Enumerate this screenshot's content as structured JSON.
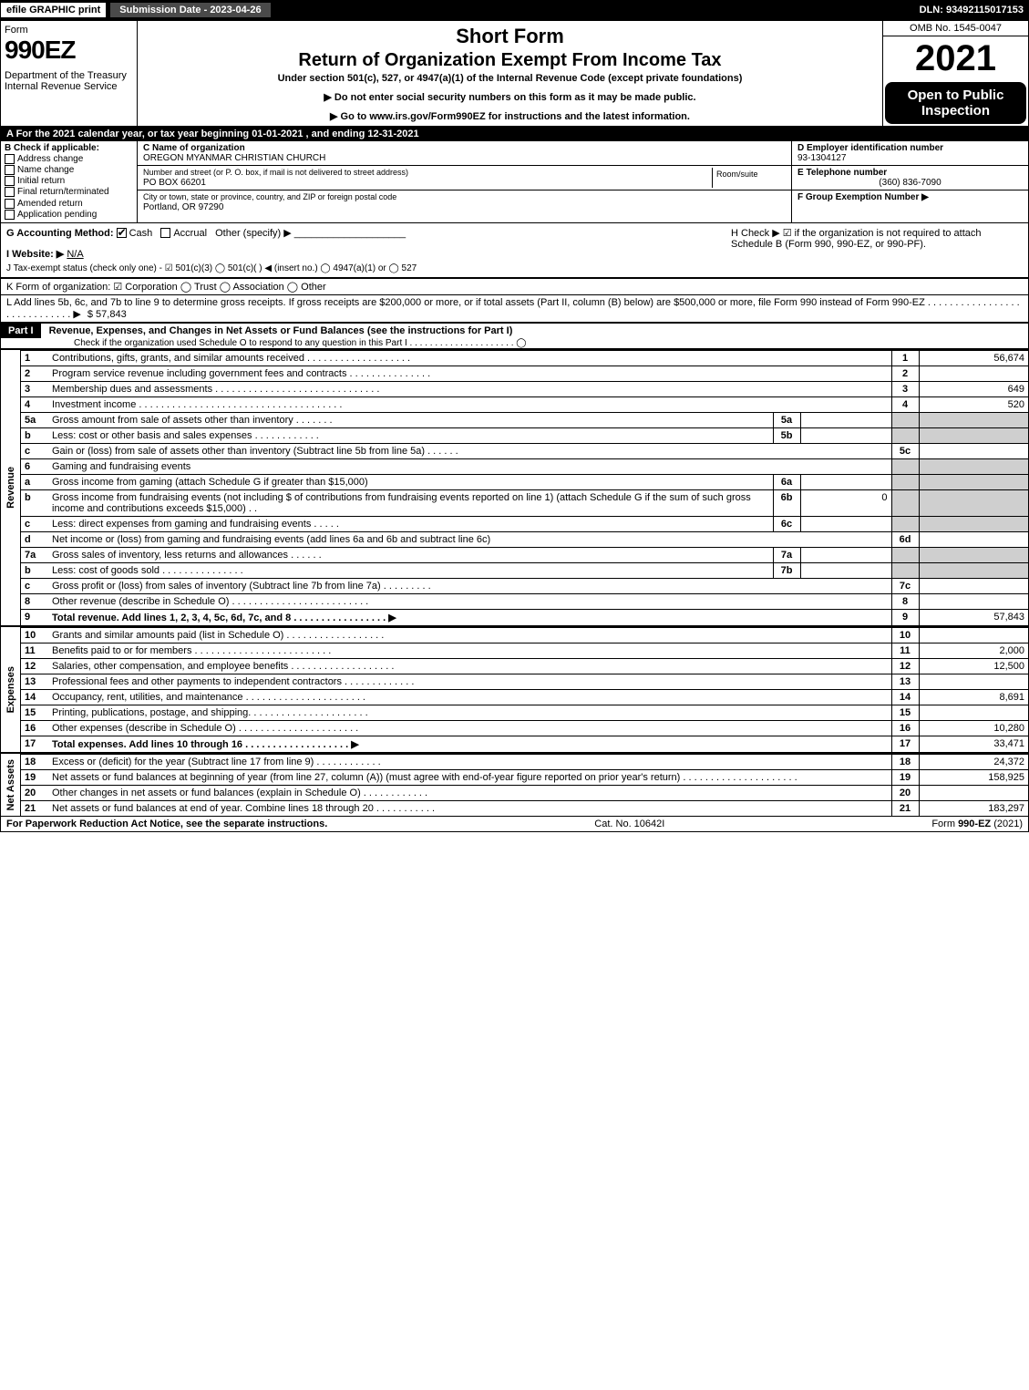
{
  "topbar": {
    "efile": "efile GRAPHIC print",
    "subdate": "Submission Date - 2023-04-26",
    "dln": "DLN: 93492115017153"
  },
  "header": {
    "form_label": "Form",
    "form_num": "990EZ",
    "dept": "Department of the Treasury\nInternal Revenue Service",
    "short_form": "Short Form",
    "return_title": "Return of Organization Exempt From Income Tax",
    "under": "Under section 501(c), 527, or 4947(a)(1) of the Internal Revenue Code (except private foundations)",
    "donot": "▶ Do not enter social security numbers on this form as it may be made public.",
    "goto": "▶ Go to www.irs.gov/Form990EZ for instructions and the latest information.",
    "omb": "OMB No. 1545-0047",
    "year": "2021",
    "open": "Open to Public Inspection"
  },
  "rowA": "A  For the 2021 calendar year, or tax year beginning 01-01-2021 , and ending 12-31-2021",
  "colB": {
    "hd": "B  Check if applicable:",
    "items": [
      "Address change",
      "Name change",
      "Initial return",
      "Final return/terminated",
      "Amended return",
      "Application pending"
    ]
  },
  "colC": {
    "name_lbl": "C Name of organization",
    "name": "OREGON MYANMAR CHRISTIAN CHURCH",
    "addr_lbl": "Number and street (or P. O. box, if mail is not delivered to street address)",
    "room_lbl": "Room/suite",
    "addr": "PO BOX 66201",
    "city_lbl": "City or town, state or province, country, and ZIP or foreign postal code",
    "city": "Portland, OR  97290"
  },
  "colD": {
    "ein_lbl": "D Employer identification number",
    "ein": "93-1304127",
    "phone_lbl": "E Telephone number",
    "phone": "(360) 836-7090",
    "group_lbl": "F Group Exemption Number ▶"
  },
  "secG": {
    "acct": "G Accounting Method:",
    "cash": "Cash",
    "accr": "Accrual",
    "other": "Other (specify) ▶",
    "web_lbl": "I Website: ▶",
    "web": "N/A",
    "j": "J Tax-exempt status (check only one) - ☑ 501(c)(3)  ◯ 501(c)(  ) ◀ (insert no.)  ◯ 4947(a)(1) or  ◯ 527",
    "h": "H  Check ▶ ☑ if the organization is not required to attach Schedule B (Form 990, 990-EZ, or 990-PF)."
  },
  "k": "K Form of organization:  ☑ Corporation  ◯ Trust  ◯ Association  ◯ Other",
  "l": {
    "text": "L Add lines 5b, 6c, and 7b to line 9 to determine gross receipts. If gross receipts are $200,000 or more, or if total assets (Part II, column (B) below) are $500,000 or more, file Form 990 instead of Form 990-EZ  .  .  .  .  .  .  .  .  .  .  .  .  .  .  .  .  .  .  .  .  .  .  .  .  .  .  .  .  .  ▶",
    "amt": "$ 57,843"
  },
  "part1": {
    "label": "Part I",
    "title": "Revenue, Expenses, and Changes in Net Assets or Fund Balances (see the instructions for Part I)",
    "check": "Check if the organization used Schedule O to respond to any question in this Part I  .  .  .  .  .  .  .  .  .  .  .  .  .  .  .  .  .  .  .  .  .  ◯"
  },
  "revenue_label": "Revenue",
  "expenses_label": "Expenses",
  "netassets_label": "Net Assets",
  "rows_rev": [
    {
      "n": "1",
      "d": "Contributions, gifts, grants, and similar amounts received  .  .  .  .  .  .  .  .  .  .  .  .  .  .  .  .  .  .  .",
      "rn": "1",
      "amt": "56,674"
    },
    {
      "n": "2",
      "d": "Program service revenue including government fees and contracts  .  .  .  .  .  .  .  .  .  .  .  .  .  .  .",
      "rn": "2",
      "amt": ""
    },
    {
      "n": "3",
      "d": "Membership dues and assessments .  .  .  .  .  .  .  .  .  .  .  .  .  .  .  .  .  .  .  .  .  .  .  .  .  .  .  .  .  .",
      "rn": "3",
      "amt": "649"
    },
    {
      "n": "4",
      "d": "Investment income .  .  .  .  .  .  .  .  .  .  .  .  .  .  .  .  .  .  .  .  .  .  .  .  .  .  .  .  .  .  .  .  .  .  .  .  .",
      "rn": "4",
      "amt": "520"
    },
    {
      "n": "5a",
      "d": "Gross amount from sale of assets other than inventory  .  .  .  .  .  .  .",
      "mid": "5a",
      "midv": "",
      "gray": true
    },
    {
      "n": "b",
      "d": "Less: cost or other basis and sales expenses  .  .  .  .  .  .  .  .  .  .  .  .",
      "mid": "5b",
      "midv": "",
      "gray": true
    },
    {
      "n": "c",
      "d": "Gain or (loss) from sale of assets other than inventory (Subtract line 5b from line 5a)  .  .  .  .  .  .",
      "rn": "5c",
      "amt": ""
    },
    {
      "n": "6",
      "d": "Gaming and fundraising events",
      "gray": true,
      "norow": true
    },
    {
      "n": "a",
      "d": "Gross income from gaming (attach Schedule G if greater than $15,000)",
      "mid": "6a",
      "midv": "",
      "gray": true
    },
    {
      "n": "b",
      "d": "Gross income from fundraising events (not including $                   of contributions from fundraising events reported on line 1) (attach Schedule G if the sum of such gross income and contributions exceeds $15,000)   .   .",
      "mid": "6b",
      "midv": "0",
      "gray": true
    },
    {
      "n": "c",
      "d": "Less: direct expenses from gaming and fundraising events   .  .  .  .  .",
      "mid": "6c",
      "midv": "",
      "gray": true
    },
    {
      "n": "d",
      "d": "Net income or (loss) from gaming and fundraising events (add lines 6a and 6b and subtract line 6c)",
      "rn": "6d",
      "amt": ""
    },
    {
      "n": "7a",
      "d": "Gross sales of inventory, less returns and allowances  .  .  .  .  .  .",
      "mid": "7a",
      "midv": "",
      "gray": true
    },
    {
      "n": "b",
      "d": "Less: cost of goods sold      .  .  .  .  .  .  .  .  .  .  .  .  .  .  .",
      "mid": "7b",
      "midv": "",
      "gray": true
    },
    {
      "n": "c",
      "d": "Gross profit or (loss) from sales of inventory (Subtract line 7b from line 7a)  .  .  .  .  .  .  .  .  .",
      "rn": "7c",
      "amt": ""
    },
    {
      "n": "8",
      "d": "Other revenue (describe in Schedule O) .  .  .  .  .  .  .  .  .  .  .  .  .  .  .  .  .  .  .  .  .  .  .  .  .",
      "rn": "8",
      "amt": ""
    },
    {
      "n": "9",
      "d": "Total revenue. Add lines 1, 2, 3, 4, 5c, 6d, 7c, and 8  .  .  .  .  .  .  .  .  .  .  .  .  .  .  .  .  .  ▶",
      "rn": "9",
      "amt": "57,843",
      "bold": true
    }
  ],
  "rows_exp": [
    {
      "n": "10",
      "d": "Grants and similar amounts paid (list in Schedule O) .  .  .  .  .  .  .  .  .  .  .  .  .  .  .  .  .  .",
      "rn": "10",
      "amt": ""
    },
    {
      "n": "11",
      "d": "Benefits paid to or for members    .  .  .  .  .  .  .  .  .  .  .  .  .  .  .  .  .  .  .  .  .  .  .  .  .",
      "rn": "11",
      "amt": "2,000"
    },
    {
      "n": "12",
      "d": "Salaries, other compensation, and employee benefits .  .  .  .  .  .  .  .  .  .  .  .  .  .  .  .  .  .  .",
      "rn": "12",
      "amt": "12,500"
    },
    {
      "n": "13",
      "d": "Professional fees and other payments to independent contractors .  .  .  .  .  .  .  .  .  .  .  .  .",
      "rn": "13",
      "amt": ""
    },
    {
      "n": "14",
      "d": "Occupancy, rent, utilities, and maintenance .  .  .  .  .  .  .  .  .  .  .  .  .  .  .  .  .  .  .  .  .  .",
      "rn": "14",
      "amt": "8,691"
    },
    {
      "n": "15",
      "d": "Printing, publications, postage, and shipping.  .  .  .  .  .  .  .  .  .  .  .  .  .  .  .  .  .  .  .  .  .",
      "rn": "15",
      "amt": ""
    },
    {
      "n": "16",
      "d": "Other expenses (describe in Schedule O)   .  .  .  .  .  .  .  .  .  .  .  .  .  .  .  .  .  .  .  .  .  .",
      "rn": "16",
      "amt": "10,280"
    },
    {
      "n": "17",
      "d": "Total expenses. Add lines 10 through 16    .  .  .  .  .  .  .  .  .  .  .  .  .  .  .  .  .  .  .  ▶",
      "rn": "17",
      "amt": "33,471",
      "bold": true
    }
  ],
  "rows_net": [
    {
      "n": "18",
      "d": "Excess or (deficit) for the year (Subtract line 17 from line 9)      .  .  .  .  .  .  .  .  .  .  .  .",
      "rn": "18",
      "amt": "24,372"
    },
    {
      "n": "19",
      "d": "Net assets or fund balances at beginning of year (from line 27, column (A)) (must agree with end-of-year figure reported on prior year's return) .  .  .  .  .  .  .  .  .  .  .  .  .  .  .  .  .  .  .  .  .",
      "rn": "19",
      "amt": "158,925"
    },
    {
      "n": "20",
      "d": "Other changes in net assets or fund balances (explain in Schedule O) .  .  .  .  .  .  .  .  .  .  .  .",
      "rn": "20",
      "amt": ""
    },
    {
      "n": "21",
      "d": "Net assets or fund balances at end of year. Combine lines 18 through 20 .  .  .  .  .  .  .  .  .  .  .",
      "rn": "21",
      "amt": "183,297"
    }
  ],
  "footer": {
    "l": "For Paperwork Reduction Act Notice, see the separate instructions.",
    "c": "Cat. No. 10642I",
    "r": "Form 990-EZ (2021)"
  },
  "colors": {
    "black": "#000000",
    "gray": "#cfcfcf",
    "darkgray": "#4a4a4a",
    "link": "#0000ee"
  }
}
